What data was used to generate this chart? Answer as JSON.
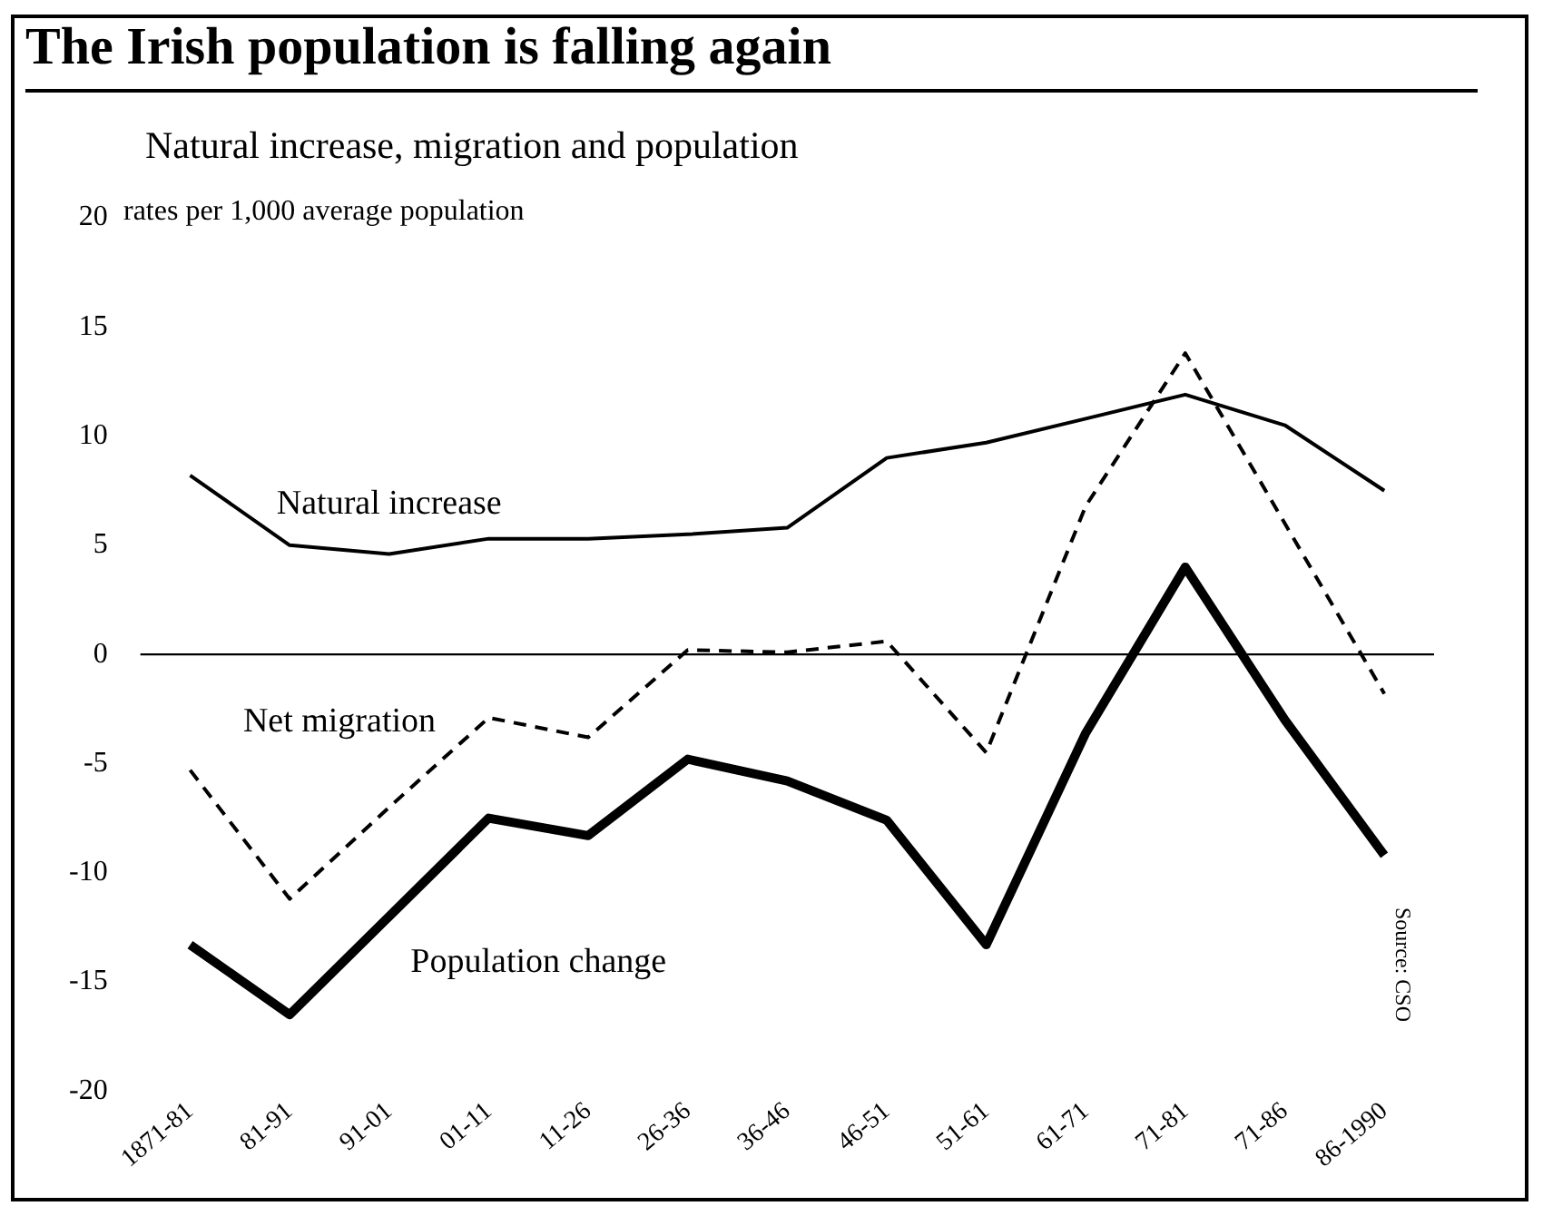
{
  "chart_data": {
    "type": "line",
    "title": "The Irish population is falling again",
    "subtitle": "Natural increase, migration and population",
    "ylabel": "rates per 1,000 average population",
    "categories": [
      "1871-81",
      "81-91",
      "91-01",
      "01-11",
      "11-26",
      "26-36",
      "36-46",
      "46-51",
      "51-61",
      "61-71",
      "71-81",
      "71-86",
      "86-1990"
    ],
    "series": [
      {
        "name": "Natural increase",
        "color": "#000000",
        "line_style": "solid",
        "values": [
          8.2,
          5,
          4.6,
          5.3,
          5.3,
          5.5,
          5.8,
          9,
          9.7,
          10.8,
          11.9,
          10.5,
          7.5
        ]
      },
      {
        "name": "Net migration",
        "color": "#000000",
        "line_style": "dashed",
        "values": [
          -5.3,
          -11.2,
          -7,
          -2.9,
          -3.8,
          0.2,
          0.1,
          0.6,
          -4.5,
          6.8,
          13.8,
          6,
          -1.8
        ]
      },
      {
        "name": "Population change",
        "color": "#000000",
        "line_style": "solid",
        "values": [
          -13.3,
          -16.5,
          -12,
          -7.5,
          -8.3,
          -4.8,
          -5.8,
          -7.6,
          -13.3,
          -3.6,
          4,
          -3,
          -9.2
        ]
      }
    ],
    "ylim": [
      -20,
      20
    ],
    "yticks": [
      -20,
      -15,
      -10,
      -5,
      0,
      5,
      10,
      15,
      20
    ],
    "grid": false,
    "legend": false,
    "marker": "none",
    "ref_lines": [
      {
        "axis": "y",
        "value": 0,
        "label": null,
        "color": "#000000"
      }
    ],
    "annotations": [
      "Source: CSO"
    ]
  }
}
